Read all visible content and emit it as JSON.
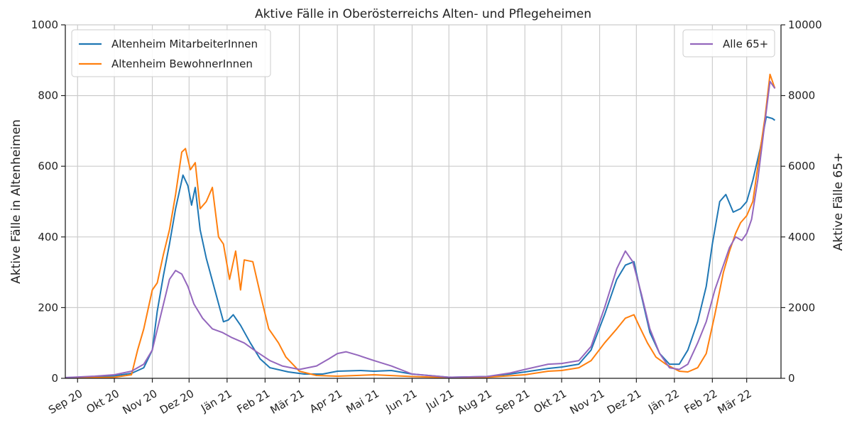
{
  "chart_data": {
    "type": "line",
    "title": "Aktive Fälle in Oberösterreichs Alten- und Pflegeheimen",
    "ylabel": "Aktive Fälle in Altenheimen",
    "y2label": "Aktive Fälle 65+",
    "ylim": [
      0,
      1000
    ],
    "y2lim": [
      0,
      10000
    ],
    "yticks": [
      0,
      200,
      400,
      600,
      800,
      1000
    ],
    "y2ticks": [
      0,
      2000,
      4000,
      6000,
      8000,
      10000
    ],
    "ytick_labels": [
      "0",
      "200",
      "400",
      "600",
      "800",
      "1000"
    ],
    "y2tick_labels": [
      "0",
      "2000",
      "4000",
      "6000",
      "8000",
      "10000"
    ],
    "xlim": [
      "2020-08-22",
      "2022-03-29"
    ],
    "xticks": [
      "2020-09-01",
      "2020-10-01",
      "2020-11-01",
      "2020-12-01",
      "2021-01-01",
      "2021-02-01",
      "2021-03-01",
      "2021-04-01",
      "2021-05-01",
      "2021-06-01",
      "2021-07-01",
      "2021-08-01",
      "2021-09-01",
      "2021-10-01",
      "2021-11-01",
      "2021-12-01",
      "2022-01-01",
      "2022-02-01",
      "2022-03-01"
    ],
    "xtick_labels": [
      "Sep 20",
      "Okt 20",
      "Nov 20",
      "Dez 20",
      "Jän 21",
      "Feb 21",
      "Mär 21",
      "Apr 21",
      "Mai 21",
      "Jun 21",
      "Jul 21",
      "Aug 21",
      "Sep 21",
      "Okt 21",
      "Nov 21",
      "Dez 21",
      "Jän 22",
      "Feb 22",
      "Mär 22"
    ],
    "grid": true,
    "legend_left": "top-left",
    "legend_right": "top-right",
    "series": [
      {
        "name": "Altenheim MitarbeiterInnen",
        "axis": "left",
        "color": "#1f77b4",
        "points": [
          [
            "2020-08-22",
            2
          ],
          [
            "2020-09-15",
            4
          ],
          [
            "2020-10-01",
            7
          ],
          [
            "2020-10-15",
            14
          ],
          [
            "2020-10-25",
            30
          ],
          [
            "2020-11-01",
            80
          ],
          [
            "2020-11-05",
            190
          ],
          [
            "2020-11-10",
            290
          ],
          [
            "2020-11-15",
            380
          ],
          [
            "2020-11-20",
            480
          ],
          [
            "2020-11-26",
            575
          ],
          [
            "2020-11-30",
            545
          ],
          [
            "2020-12-03",
            490
          ],
          [
            "2020-12-06",
            540
          ],
          [
            "2020-12-10",
            420
          ],
          [
            "2020-12-15",
            340
          ],
          [
            "2020-12-22",
            250
          ],
          [
            "2020-12-29",
            160
          ],
          [
            "2021-01-02",
            165
          ],
          [
            "2021-01-06",
            180
          ],
          [
            "2021-01-12",
            150
          ],
          [
            "2021-01-20",
            100
          ],
          [
            "2021-01-28",
            55
          ],
          [
            "2021-02-05",
            30
          ],
          [
            "2021-02-20",
            18
          ],
          [
            "2021-03-05",
            12
          ],
          [
            "2021-03-20",
            12
          ],
          [
            "2021-04-01",
            20
          ],
          [
            "2021-04-20",
            22
          ],
          [
            "2021-05-01",
            20
          ],
          [
            "2021-05-15",
            22
          ],
          [
            "2021-06-01",
            12
          ],
          [
            "2021-07-01",
            3
          ],
          [
            "2021-08-01",
            5
          ],
          [
            "2021-08-20",
            12
          ],
          [
            "2021-09-01",
            18
          ],
          [
            "2021-09-20",
            28
          ],
          [
            "2021-10-01",
            32
          ],
          [
            "2021-10-15",
            40
          ],
          [
            "2021-10-25",
            80
          ],
          [
            "2021-11-05",
            180
          ],
          [
            "2021-11-15",
            280
          ],
          [
            "2021-11-22",
            320
          ],
          [
            "2021-11-29",
            330
          ],
          [
            "2021-12-04",
            250
          ],
          [
            "2021-12-12",
            130
          ],
          [
            "2021-12-20",
            70
          ],
          [
            "2021-12-28",
            40
          ],
          [
            "2022-01-05",
            40
          ],
          [
            "2022-01-12",
            80
          ],
          [
            "2022-01-20",
            160
          ],
          [
            "2022-01-27",
            260
          ],
          [
            "2022-02-01",
            380
          ],
          [
            "2022-02-07",
            500
          ],
          [
            "2022-02-12",
            520
          ],
          [
            "2022-02-18",
            470
          ],
          [
            "2022-02-24",
            480
          ],
          [
            "2022-03-01",
            500
          ],
          [
            "2022-03-06",
            560
          ],
          [
            "2022-03-12",
            650
          ],
          [
            "2022-03-17",
            740
          ],
          [
            "2022-03-22",
            735
          ],
          [
            "2022-03-24",
            730
          ]
        ]
      },
      {
        "name": "Altenheim BewohnerInnen",
        "axis": "left",
        "color": "#ff7f0e",
        "points": [
          [
            "2020-08-22",
            1
          ],
          [
            "2020-09-15",
            2
          ],
          [
            "2020-10-01",
            3
          ],
          [
            "2020-10-15",
            10
          ],
          [
            "2020-10-20",
            80
          ],
          [
            "2020-10-25",
            140
          ],
          [
            "2020-11-01",
            250
          ],
          [
            "2020-11-05",
            270
          ],
          [
            "2020-11-10",
            350
          ],
          [
            "2020-11-15",
            420
          ],
          [
            "2020-11-20",
            520
          ],
          [
            "2020-11-25",
            640
          ],
          [
            "2020-11-28",
            650
          ],
          [
            "2020-12-02",
            590
          ],
          [
            "2020-12-06",
            610
          ],
          [
            "2020-12-10",
            480
          ],
          [
            "2020-12-15",
            500
          ],
          [
            "2020-12-20",
            540
          ],
          [
            "2020-12-25",
            400
          ],
          [
            "2020-12-29",
            380
          ],
          [
            "2021-01-03",
            280
          ],
          [
            "2021-01-08",
            360
          ],
          [
            "2021-01-12",
            250
          ],
          [
            "2021-01-15",
            335
          ],
          [
            "2021-01-22",
            330
          ],
          [
            "2021-01-28",
            240
          ],
          [
            "2021-02-04",
            140
          ],
          [
            "2021-02-12",
            100
          ],
          [
            "2021-02-18",
            60
          ],
          [
            "2021-03-01",
            20
          ],
          [
            "2021-03-15",
            8
          ],
          [
            "2021-04-01",
            6
          ],
          [
            "2021-05-01",
            10
          ],
          [
            "2021-06-01",
            5
          ],
          [
            "2021-07-01",
            2
          ],
          [
            "2021-08-01",
            3
          ],
          [
            "2021-09-01",
            10
          ],
          [
            "2021-09-20",
            20
          ],
          [
            "2021-10-01",
            22
          ],
          [
            "2021-10-15",
            30
          ],
          [
            "2021-10-25",
            50
          ],
          [
            "2021-11-05",
            100
          ],
          [
            "2021-11-15",
            140
          ],
          [
            "2021-11-22",
            170
          ],
          [
            "2021-11-29",
            180
          ],
          [
            "2021-12-03",
            150
          ],
          [
            "2021-12-10",
            100
          ],
          [
            "2021-12-17",
            60
          ],
          [
            "2021-12-25",
            40
          ],
          [
            "2022-01-05",
            20
          ],
          [
            "2022-01-12",
            18
          ],
          [
            "2022-01-20",
            30
          ],
          [
            "2022-01-27",
            70
          ],
          [
            "2022-02-03",
            180
          ],
          [
            "2022-02-10",
            300
          ],
          [
            "2022-02-15",
            360
          ],
          [
            "2022-02-20",
            410
          ],
          [
            "2022-02-24",
            440
          ],
          [
            "2022-03-01",
            460
          ],
          [
            "2022-03-06",
            500
          ],
          [
            "2022-03-11",
            620
          ],
          [
            "2022-03-16",
            740
          ],
          [
            "2022-03-20",
            860
          ],
          [
            "2022-03-24",
            820
          ]
        ]
      },
      {
        "name": "Alle 65+",
        "axis": "right",
        "color": "#9467bd",
        "points": [
          [
            "2020-08-22",
            20
          ],
          [
            "2020-09-15",
            60
          ],
          [
            "2020-10-01",
            100
          ],
          [
            "2020-10-15",
            200
          ],
          [
            "2020-10-25",
            400
          ],
          [
            "2020-11-01",
            800
          ],
          [
            "2020-11-08",
            1800
          ],
          [
            "2020-11-15",
            2800
          ],
          [
            "2020-11-20",
            3050
          ],
          [
            "2020-11-25",
            2950
          ],
          [
            "2020-11-30",
            2600
          ],
          [
            "2020-12-05",
            2100
          ],
          [
            "2020-12-12",
            1700
          ],
          [
            "2020-12-20",
            1400
          ],
          [
            "2020-12-28",
            1300
          ],
          [
            "2021-01-05",
            1150
          ],
          [
            "2021-01-15",
            1000
          ],
          [
            "2021-01-25",
            750
          ],
          [
            "2021-02-05",
            500
          ],
          [
            "2021-02-15",
            350
          ],
          [
            "2021-03-01",
            250
          ],
          [
            "2021-03-15",
            350
          ],
          [
            "2021-03-25",
            550
          ],
          [
            "2021-04-01",
            700
          ],
          [
            "2021-04-08",
            750
          ],
          [
            "2021-04-18",
            650
          ],
          [
            "2021-05-01",
            500
          ],
          [
            "2021-05-15",
            350
          ],
          [
            "2021-06-01",
            120
          ],
          [
            "2021-07-01",
            30
          ],
          [
            "2021-08-01",
            50
          ],
          [
            "2021-08-20",
            150
          ],
          [
            "2021-09-01",
            250
          ],
          [
            "2021-09-20",
            400
          ],
          [
            "2021-10-01",
            420
          ],
          [
            "2021-10-15",
            500
          ],
          [
            "2021-10-25",
            900
          ],
          [
            "2021-11-05",
            2000
          ],
          [
            "2021-11-15",
            3100
          ],
          [
            "2021-11-22",
            3600
          ],
          [
            "2021-11-28",
            3300
          ],
          [
            "2021-12-05",
            2400
          ],
          [
            "2021-12-12",
            1400
          ],
          [
            "2021-12-20",
            700
          ],
          [
            "2021-12-28",
            300
          ],
          [
            "2022-01-05",
            250
          ],
          [
            "2022-01-12",
            400
          ],
          [
            "2022-01-20",
            1000
          ],
          [
            "2022-01-27",
            1600
          ],
          [
            "2022-02-03",
            2500
          ],
          [
            "2022-02-10",
            3200
          ],
          [
            "2022-02-15",
            3700
          ],
          [
            "2022-02-20",
            4000
          ],
          [
            "2022-02-25",
            3900
          ],
          [
            "2022-03-01",
            4100
          ],
          [
            "2022-03-05",
            4500
          ],
          [
            "2022-03-10",
            5600
          ],
          [
            "2022-03-15",
            7000
          ],
          [
            "2022-03-20",
            8400
          ],
          [
            "2022-03-24",
            8200
          ]
        ]
      }
    ]
  }
}
